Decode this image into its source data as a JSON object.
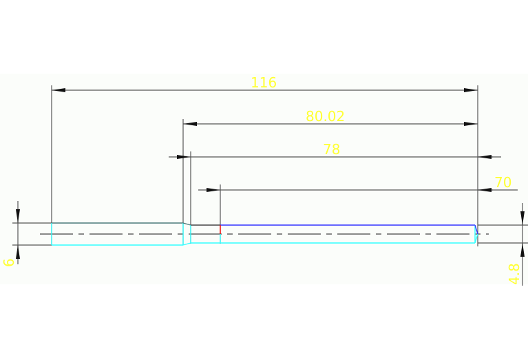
{
  "drawing": {
    "dimensions": {
      "overall_length": "116",
      "length_80": "80.02",
      "length_78": "78",
      "length_70": "70",
      "diameter_large": "6",
      "diameter_small": "4.8"
    },
    "colors": {
      "background_band": "#fbfdfa",
      "dimension_line": "#555555",
      "dimension_text": "#ffff33",
      "part_outline_cyan": "#33ffff",
      "part_outline_blue": "#3333ff",
      "marker_red": "#ff0000",
      "center_line": "#444444"
    }
  }
}
